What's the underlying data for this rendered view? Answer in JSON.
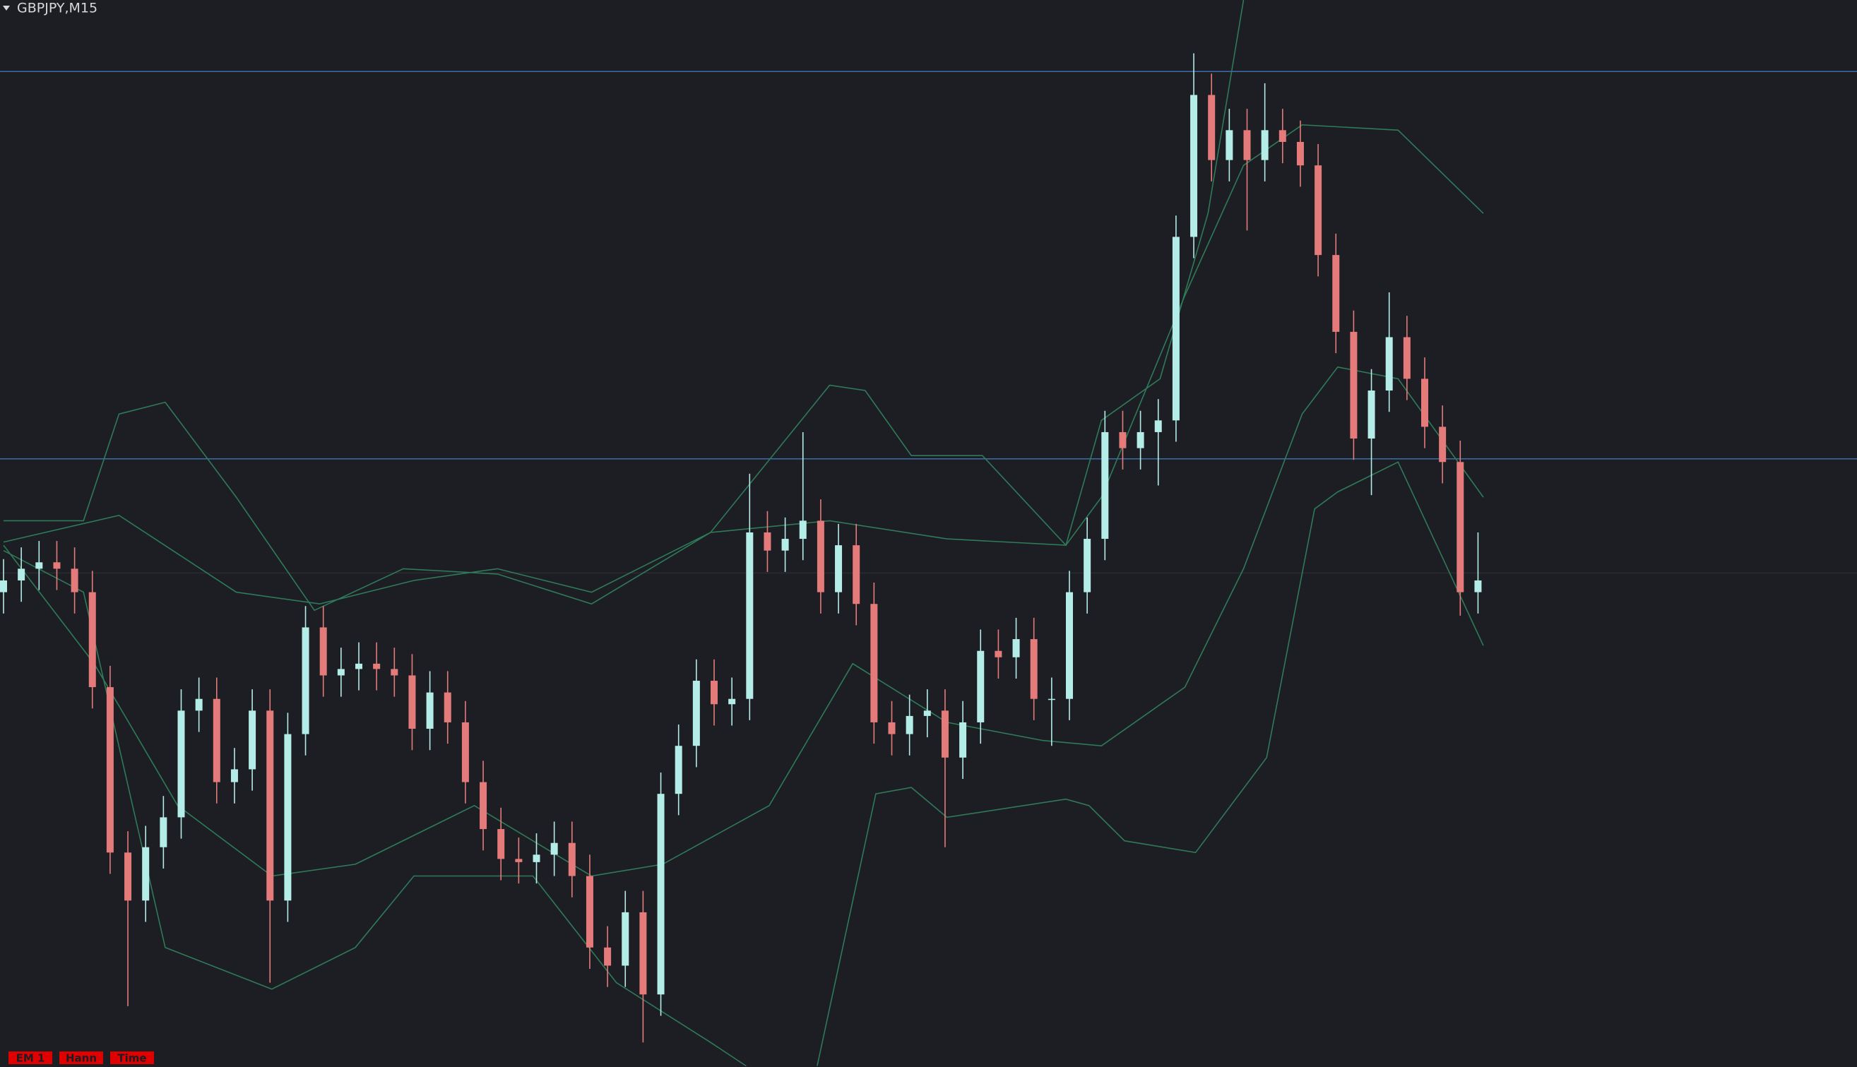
{
  "chart_data": {
    "type": "candlestick",
    "title": "GBPJPY,M15",
    "tags": [
      "EM 1",
      "Hann",
      "Time"
    ],
    "background": "#1c1e23",
    "up_color": "#b4ece8",
    "down_color": "#e57a7a",
    "band_color": "#2f7a58",
    "ylim": [
      0,
      100
    ],
    "open": [
      44.5,
      45.6,
      46.7,
      47.3,
      46.7,
      44.5,
      35.6,
      20.1,
      15.6,
      20.6,
      23.4,
      33.4,
      34.5,
      26.7,
      27.9,
      33.4,
      15.6,
      31.2,
      41.2,
      36.7,
      37.3,
      37.8,
      37.3,
      36.7,
      31.7,
      35.1,
      32.3,
      26.7,
      22.3,
      19.5,
      19.2,
      19.9,
      21.0,
      17.9,
      11.2,
      9.5,
      14.5,
      6.8,
      25.6,
      30.1,
      36.2,
      34.0,
      34.5,
      50.1,
      48.4,
      49.5,
      51.2,
      44.5,
      48.9,
      43.4,
      32.3,
      31.2,
      32.9,
      33.4,
      29.0,
      32.3,
      39.0,
      38.4,
      40.1,
      34.5,
      34.5,
      44.5,
      49.5,
      59.5,
      58.0,
      59.5,
      60.6,
      77.8,
      91.1,
      85.0,
      87.8,
      85.0,
      87.8,
      86.7,
      84.5,
      76.1,
      68.9,
      58.9,
      63.4,
      68.4,
      64.5,
      60.0,
      56.7,
      44.5
    ],
    "high": [
      47.6,
      48.7,
      49.3,
      49.3,
      48.7,
      46.5,
      37.6,
      22.1,
      22.6,
      25.4,
      35.4,
      36.5,
      36.5,
      29.9,
      35.4,
      35.4,
      33.2,
      43.2,
      43.2,
      39.3,
      39.8,
      39.8,
      39.3,
      38.7,
      37.1,
      37.1,
      34.3,
      28.7,
      24.3,
      21.5,
      21.9,
      23.0,
      23.0,
      19.9,
      13.2,
      16.5,
      16.5,
      27.6,
      32.1,
      38.2,
      38.2,
      36.5,
      55.6,
      52.1,
      51.5,
      59.5,
      53.2,
      50.9,
      50.9,
      45.4,
      34.3,
      34.9,
      35.4,
      35.4,
      34.3,
      41.0,
      41.0,
      42.1,
      42.1,
      36.5,
      46.5,
      51.5,
      61.5,
      61.5,
      61.5,
      62.6,
      79.8,
      95.0,
      93.1,
      89.8,
      89.8,
      92.2,
      89.8,
      88.7,
      86.5,
      78.1,
      70.9,
      65.4,
      72.6,
      70.4,
      66.5,
      62.0,
      58.7,
      50.1
    ],
    "low": [
      42.5,
      43.6,
      44.7,
      44.7,
      42.5,
      33.6,
      18.1,
      5.7,
      13.6,
      18.6,
      21.4,
      31.4,
      24.7,
      24.7,
      25.9,
      7.9,
      13.6,
      29.2,
      34.7,
      34.7,
      35.3,
      35.3,
      34.7,
      29.7,
      29.7,
      30.3,
      24.7,
      20.3,
      17.5,
      17.2,
      17.2,
      17.9,
      15.9,
      9.2,
      7.5,
      7.5,
      2.3,
      4.8,
      23.6,
      28.1,
      32.0,
      32.0,
      32.5,
      46.4,
      46.4,
      47.5,
      42.5,
      42.5,
      41.4,
      30.3,
      29.2,
      29.2,
      30.9,
      20.6,
      27.0,
      30.3,
      36.4,
      36.4,
      32.5,
      30.1,
      32.5,
      42.5,
      47.5,
      56.0,
      56.0,
      54.5,
      58.6,
      75.8,
      83.0,
      83.0,
      78.4,
      83.0,
      84.7,
      82.5,
      74.1,
      66.9,
      56.9,
      53.6,
      61.4,
      62.5,
      58.0,
      54.7,
      42.3,
      42.5
    ],
    "close": [
      45.6,
      46.7,
      47.3,
      46.7,
      44.5,
      35.6,
      20.1,
      15.6,
      20.6,
      23.4,
      33.4,
      34.5,
      26.7,
      27.9,
      33.4,
      15.6,
      31.2,
      41.2,
      36.7,
      37.3,
      37.8,
      37.3,
      36.7,
      31.7,
      35.1,
      32.3,
      26.7,
      22.3,
      19.5,
      19.2,
      19.9,
      21.0,
      17.9,
      11.2,
      9.5,
      14.5,
      6.8,
      25.6,
      30.1,
      36.2,
      34.0,
      34.5,
      50.1,
      48.4,
      49.5,
      51.2,
      44.5,
      48.9,
      43.4,
      32.3,
      31.2,
      32.9,
      33.4,
      29.0,
      32.3,
      39.0,
      38.4,
      40.1,
      34.5,
      34.5,
      44.5,
      49.5,
      59.5,
      58.0,
      59.5,
      60.6,
      77.8,
      91.1,
      85.0,
      87.8,
      85.0,
      87.8,
      86.7,
      84.5,
      76.1,
      68.9,
      58.9,
      63.4,
      68.4,
      64.5,
      60.0,
      56.7,
      44.5,
      45.6
    ],
    "bands": [
      {
        "x": [
          0,
          4.5,
          6.5,
          9.1,
          13.1,
          17.5,
          22.5,
          27.8,
          33.1,
          39.8,
          46.5,
          48.5,
          51.1,
          55.1,
          59.8,
          61.8,
          65.1,
          67.8,
          69.8
        ],
        "values": [
          51.2,
          51.2,
          61.2,
          62.3,
          53.4,
          42.8,
          46.7,
          46.2,
          43.4,
          50.1,
          63.9,
          63.4,
          57.3,
          57.3,
          48.9,
          60.6,
          64.5,
          80.0,
          100
        ]
      },
      {
        "x": [
          0,
          6.5,
          13.1,
          17.8,
          23.1,
          27.8,
          33.1,
          39.8,
          46.5,
          53.1,
          59.8,
          61.8,
          66.5,
          69.8,
          73.1,
          78.5,
          83.3
        ],
        "values": [
          49.2,
          51.7,
          44.5,
          43.4,
          45.6,
          46.7,
          44.5,
          50.1,
          51.2,
          49.5,
          48.9,
          53.4,
          72.3,
          84.5,
          88.3,
          87.8,
          80.0
        ]
      },
      {
        "x": [
          0,
          5.1,
          9.8,
          15.1,
          19.8,
          26.5,
          33.1,
          37.1,
          43.1,
          47.8,
          53.1,
          58.5,
          61.8,
          66.5,
          69.8,
          73.1,
          75.1,
          78.5,
          83.3
        ],
        "values": [
          48.9,
          37.8,
          24.5,
          17.9,
          19.0,
          24.5,
          17.9,
          19.0,
          24.5,
          37.8,
          32.3,
          30.6,
          30.1,
          35.6,
          46.7,
          61.2,
          65.6,
          64.5,
          53.4
        ]
      },
      {
        "x": [
          0,
          4.5,
          9.1,
          15.1,
          19.8,
          23.1,
          29.8,
          34.5,
          39.8,
          41.8
        ],
        "values": [
          48.4,
          44.5,
          11.2,
          7.3,
          11.2,
          17.9,
          17.9,
          7.9,
          2.3,
          0.1
        ]
      },
      {
        "x": [
          45.8,
          49.1,
          51.1,
          53.1,
          59.8,
          61.1,
          63.1,
          67.1,
          71.1,
          73.8,
          75.1,
          78.5,
          83.3
        ],
        "values": [
          0.1,
          25.6,
          26.2,
          23.4,
          25.1,
          24.5,
          21.2,
          20.1,
          29.0,
          52.3,
          53.9,
          56.7,
          39.5
        ]
      }
    ],
    "levels": [
      {
        "value": 93.3,
        "color": "#3a6fa8"
      },
      {
        "value": 57.0,
        "color": "#3a6fa8"
      },
      {
        "value": 46.3,
        "color": "#2a2c31"
      }
    ]
  }
}
